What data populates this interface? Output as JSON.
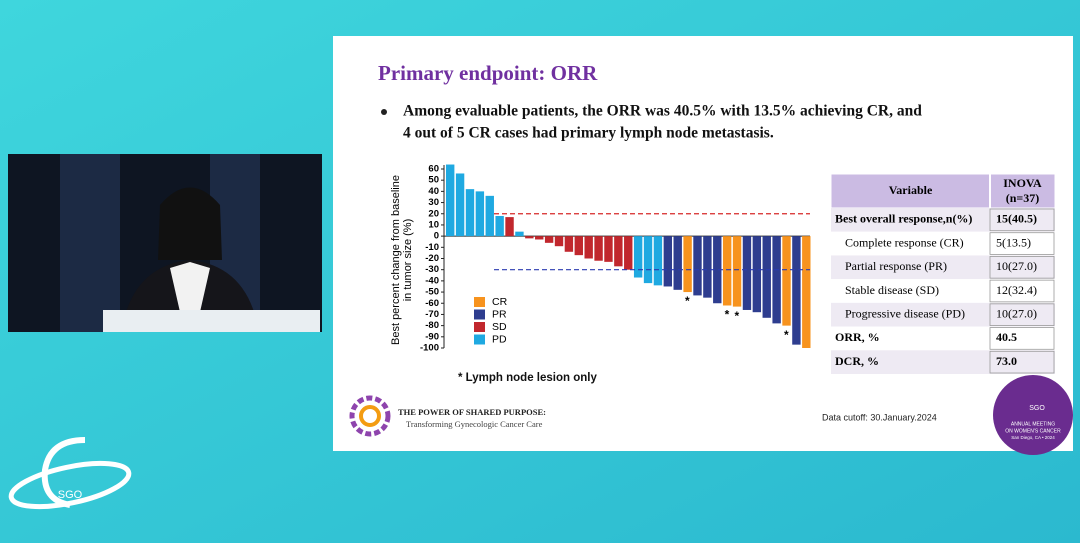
{
  "slide": {
    "title": "Primary endpoint: ORR",
    "bullet_lines": [
      "Among evaluable patients, the ORR was 40.5% with 13.5% achieving CR, and",
      "4 out of 5 CR cases had primary lymph node metastasis."
    ],
    "footnote": "* Lymph node lesion only",
    "footer_title": "THE POWER OF SHARED PURPOSE:",
    "footer_subtitle": "Transforming Gynecologic Cancer Care",
    "data_cutoff": "Data cutoff: 30.January.2024",
    "logo_text": "SGO",
    "badge_lines": [
      "SGO",
      "ANNUAL MEETING",
      "ON WOMEN'S CANCER",
      "San Diego, CA • 2024"
    ]
  },
  "table": {
    "header": [
      "Variable",
      "INOVA",
      "(n=37)"
    ],
    "rows": [
      [
        "Best overall response,n(%)",
        "15(40.5)"
      ],
      [
        "Complete response (CR)",
        "5(13.5)"
      ],
      [
        "Partial response (PR)",
        "10(27.0)"
      ],
      [
        "Stable disease (SD)",
        "12(32.4)"
      ],
      [
        "Progressive disease (PD)",
        "10(27.0)"
      ],
      [
        "ORR, %",
        "40.5"
      ],
      [
        "DCR, %",
        "73.0"
      ]
    ]
  },
  "chart_data": {
    "type": "waterfall",
    "y_label": [
      "Best percent change from baseline",
      "in tumor size (%)"
    ],
    "ylim": [
      -100,
      60
    ],
    "yticks": [
      60,
      50,
      40,
      30,
      20,
      10,
      0,
      -10,
      -20,
      -30,
      -40,
      -50,
      -60,
      -70,
      -80,
      -90,
      -100
    ],
    "legend": [
      {
        "name": "CR",
        "color": "#f7931e"
      },
      {
        "name": "PR",
        "color": "#2e3d8f"
      },
      {
        "name": "SD",
        "color": "#c1272d"
      },
      {
        "name": "PD",
        "color": "#1fa9e1"
      }
    ],
    "values": [
      64,
      56,
      42,
      40,
      36,
      18,
      17,
      4,
      -2,
      -3,
      -6,
      -9,
      -14,
      -17,
      -20,
      -22,
      -23,
      -27,
      -30,
      -37,
      -42,
      -44,
      -45,
      -48,
      -50,
      -53,
      -55,
      -60,
      -62,
      -63,
      -66,
      -68,
      -73,
      -78,
      -80,
      -97,
      -100
    ],
    "groups": [
      "PD",
      "PD",
      "PD",
      "PD",
      "PD",
      "PD",
      "SD",
      "PD",
      "SD",
      "SD",
      "SD",
      "SD",
      "SD",
      "SD",
      "SD",
      "SD",
      "SD",
      "SD",
      "SD",
      "PD",
      "PD",
      "PD",
      "PR",
      "PR",
      "CR",
      "PR",
      "PR",
      "PR",
      "CR",
      "CR",
      "PR",
      "PR",
      "PR",
      "PR",
      "CR",
      "PR",
      "CR"
    ],
    "asterisks": [
      {
        "index": 24,
        "label": "*"
      },
      {
        "index": 28,
        "label": "*"
      },
      {
        "index": 29,
        "label": "*"
      },
      {
        "index": 34,
        "label": "*"
      }
    ],
    "reference_lines": [
      {
        "value": 20,
        "color": "#d62828"
      },
      {
        "value": -30,
        "color": "#2b3bb0"
      }
    ]
  }
}
